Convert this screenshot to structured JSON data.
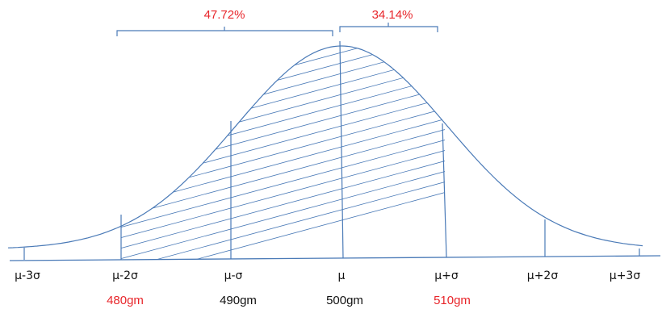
{
  "percentages": {
    "left": "47.72%",
    "right": "34.14%"
  },
  "axis_labels": [
    "μ-3σ",
    "μ-2σ",
    "μ-σ",
    "μ",
    "μ+σ",
    "μ+2σ",
    "μ+3σ"
  ],
  "value_labels": [
    {
      "text": "480gm",
      "color": "#e8262b"
    },
    {
      "text": "490gm",
      "color": "#111111"
    },
    {
      "text": "500gm",
      "color": "#111111"
    },
    {
      "text": "510gm",
      "color": "#e8262b"
    }
  ],
  "colors": {
    "line": "#4a7ab7",
    "highlight": "#e8262b",
    "text": "#111111"
  }
}
